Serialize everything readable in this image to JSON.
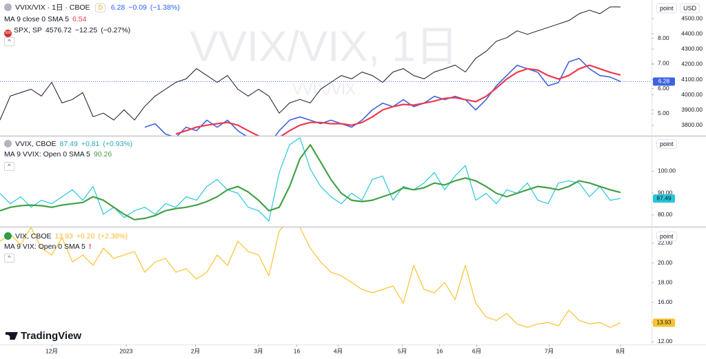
{
  "brand": "TradingView",
  "chart_data": [
    {
      "type": "line",
      "title": "VVIX/VIX · 1日 · CBOE",
      "badge": "D",
      "change": "−0.09",
      "change_pct": "(−1.38%)",
      "watermark": "VVIX/VIX, 1日",
      "scale_button": "point",
      "currency": "USD",
      "spx_icon": "500",
      "spx_change": "−12.25",
      "spx_change_pct": "(−0.27%)",
      "xlim": [
        0,
        63
      ],
      "ylim": [
        4.12,
        9.53
      ],
      "yticks": [
        {
          "value": 5,
          "label": "5.00"
        },
        {
          "value": 6,
          "label": "6.00"
        },
        {
          "value": 7,
          "label": "7.00"
        },
        {
          "value": 8,
          "label": "8.00"
        }
      ],
      "y2lim": [
        3732,
        4622
      ],
      "y2ticks": [
        {
          "value": 3800,
          "label": "3800.00"
        },
        {
          "value": 3900,
          "label": "3900.00"
        },
        {
          "value": 4000,
          "label": "4000.00"
        },
        {
          "value": 4100,
          "label": "4100.00"
        },
        {
          "value": 4200,
          "label": "4200.00"
        },
        {
          "value": 4300,
          "label": "4300.00"
        },
        {
          "value": 4400,
          "label": "4400.00"
        },
        {
          "value": 4500,
          "label": "4500.00"
        }
      ],
      "grid": false,
      "series": [
        {
          "name": "VVIX/VIX",
          "color": "#3d63e0",
          "values": [
            null,
            null,
            null,
            null,
            null,
            null,
            null,
            null,
            null,
            null,
            null,
            null,
            null,
            null,
            4.46,
            4.6,
            4.19,
            4.05,
            4.46,
            4.32,
            4.74,
            4.46,
            4.74,
            4.32,
            4.05,
            3.64,
            3.78,
            4.32,
            4.74,
            4.87,
            4.74,
            4.6,
            4.74,
            4.6,
            4.46,
            4.74,
            5.15,
            5.42,
            5.28,
            5.56,
            5.28,
            5.42,
            5.69,
            5.56,
            5.69,
            5.56,
            5.15,
            5.56,
            6.11,
            6.52,
            6.93,
            6.79,
            6.65,
            6.11,
            6.24,
            7.06,
            7.2,
            6.79,
            6.52,
            6.46,
            6.28
          ]
        },
        {
          "name": "MA 9 close 0 SMA 5",
          "color": "#f0384c",
          "values": [
            null,
            null,
            null,
            null,
            null,
            null,
            null,
            null,
            null,
            null,
            null,
            null,
            null,
            null,
            null,
            null,
            null,
            4.19,
            4.32,
            4.46,
            4.54,
            4.6,
            4.65,
            4.54,
            4.32,
            4.11,
            3.91,
            4.05,
            4.32,
            4.54,
            4.65,
            4.65,
            4.6,
            4.6,
            4.54,
            4.65,
            4.87,
            5.15,
            5.28,
            5.37,
            5.34,
            5.42,
            5.5,
            5.61,
            5.64,
            5.56,
            5.48,
            5.69,
            6.02,
            6.38,
            6.65,
            6.79,
            6.74,
            6.52,
            6.38,
            6.52,
            6.79,
            6.93,
            6.79,
            6.65,
            6.54
          ]
        },
        {
          "name": "SPX, SP",
          "color": "#131722",
          "axis": "y2",
          "values": [
            3835,
            3992,
            4015,
            4037,
            3992,
            4082,
            3947,
            3970,
            4015,
            3857,
            3880,
            3835,
            3902,
            3835,
            3925,
            3992,
            4037,
            4082,
            4105,
            4172,
            4127,
            4082,
            4127,
            4037,
            3992,
            4037,
            3992,
            3880,
            3947,
            3970,
            3947,
            4037,
            4082,
            4127,
            4105,
            4150,
            4127,
            4082,
            4150,
            4172,
            4127,
            4105,
            4150,
            4172,
            4195,
            4150,
            4240,
            4285,
            4352,
            4375,
            4420,
            4397,
            4420,
            4442,
            4465,
            4487,
            4532,
            4555,
            4532,
            4577,
            4576.72
          ]
        }
      ]
    },
    {
      "type": "line",
      "change": "+0.81",
      "change_pct": "(+0.93%)",
      "scale_button": "point",
      "xlim": [
        0,
        63
      ],
      "ylim": [
        74.6,
        115.9
      ],
      "yticks": [
        {
          "value": 80,
          "label": "80.00"
        },
        {
          "value": 90,
          "label": "90.00"
        },
        {
          "value": 100,
          "label": "100.00"
        }
      ],
      "grid": false,
      "series": [
        {
          "name": "VVIX, CBOE",
          "color": "#26c6da",
          "values": [
            89.9,
            85.1,
            88.3,
            83.5,
            86.7,
            85.1,
            88.3,
            91.5,
            86.7,
            93.0,
            80.3,
            83.5,
            78.8,
            81.9,
            83.5,
            80.3,
            85.1,
            83.5,
            88.3,
            86.7,
            93.0,
            96.2,
            91.5,
            89.9,
            83.5,
            81.9,
            77.2,
            99.4,
            112.1,
            115.3,
            101.0,
            93.0,
            88.3,
            85.1,
            89.9,
            86.7,
            96.2,
            97.8,
            86.7,
            93.0,
            91.5,
            94.6,
            99.4,
            91.5,
            97.8,
            102.6,
            86.7,
            89.9,
            85.1,
            91.5,
            89.9,
            94.6,
            86.7,
            85.1,
            94.6,
            95.6,
            94.6,
            88.3,
            93.0,
            86.7,
            87.49
          ]
        },
        {
          "name": "MA 9 VVIX: Open 0 SMA 5",
          "color": "#43a047",
          "values": [
            81.9,
            83.5,
            84.2,
            84.5,
            84.2,
            83.5,
            84.5,
            85.1,
            85.7,
            88.3,
            86.7,
            83.5,
            80.3,
            77.8,
            78.4,
            79.7,
            81.9,
            82.9,
            83.5,
            84.5,
            86.1,
            88.3,
            91.5,
            93.0,
            90.5,
            86.7,
            81.9,
            83.5,
            93.0,
            105.7,
            112.1,
            104.2,
            96.2,
            89.9,
            86.7,
            86.1,
            86.7,
            88.3,
            89.9,
            92.4,
            91.5,
            92.4,
            94.6,
            93.7,
            95.6,
            96.9,
            95.6,
            93.0,
            89.9,
            88.3,
            89.9,
            91.5,
            93.0,
            92.4,
            91.5,
            93.0,
            95.6,
            94.6,
            93.0,
            91.5,
            90.26
          ]
        }
      ]
    },
    {
      "type": "line",
      "change": "+0.20",
      "change_pct": "(+2.38%)",
      "ma_label": "MA 9 VIX: Open 0 SMA 5",
      "scale_button": "point",
      "xlim": [
        0,
        63
      ],
      "ylim": [
        11.72,
        23.6
      ],
      "yticks": [
        {
          "value": 12,
          "label": "12.00"
        },
        {
          "value": 14,
          "label": "14.00"
        },
        {
          "value": 16,
          "label": "16.00"
        },
        {
          "value": 18,
          "label": "18.00"
        },
        {
          "value": 20,
          "label": "20.00"
        },
        {
          "value": 22,
          "label": "22.00"
        }
      ],
      "xticks": [
        {
          "value": 5,
          "label": "12月"
        },
        {
          "value": 12.2,
          "label": "2023"
        },
        {
          "value": 18.9,
          "label": "2月"
        },
        {
          "value": 25,
          "label": "3月"
        },
        {
          "value": 28.7,
          "label": "16"
        },
        {
          "value": 32.7,
          "label": "4月"
        },
        {
          "value": 38.9,
          "label": "5月"
        },
        {
          "value": 42.5,
          "label": "16"
        },
        {
          "value": 46.1,
          "label": "6月"
        },
        {
          "value": 53.1,
          "label": "7月"
        },
        {
          "value": 60,
          "label": "8月"
        }
      ],
      "grid": false,
      "series": [
        {
          "name": "VIX, CBOE",
          "color": "#f9c22e",
          "values": [
            22.2,
            22.9,
            21.85,
            23.6,
            21.5,
            20.8,
            22.55,
            20.1,
            20.8,
            19.75,
            21.5,
            20.45,
            20.8,
            21.15,
            19.05,
            20.1,
            20.45,
            19.05,
            19.4,
            18.36,
            19.05,
            20.8,
            19.75,
            22.2,
            21.15,
            20.8,
            18.7,
            23.25,
            24.3,
            23.6,
            21.5,
            20.1,
            19.05,
            18.7,
            18.01,
            17.31,
            16.96,
            17.31,
            17.66,
            15.91,
            19.75,
            17.31,
            16.96,
            18.01,
            16.26,
            19.75,
            15.91,
            14.51,
            14.16,
            14.86,
            13.81,
            13.46,
            13.81,
            13.95,
            13.6,
            15.21,
            14.16,
            13.81,
            13.95,
            13.46,
            13.93
          ]
        }
      ]
    }
  ]
}
